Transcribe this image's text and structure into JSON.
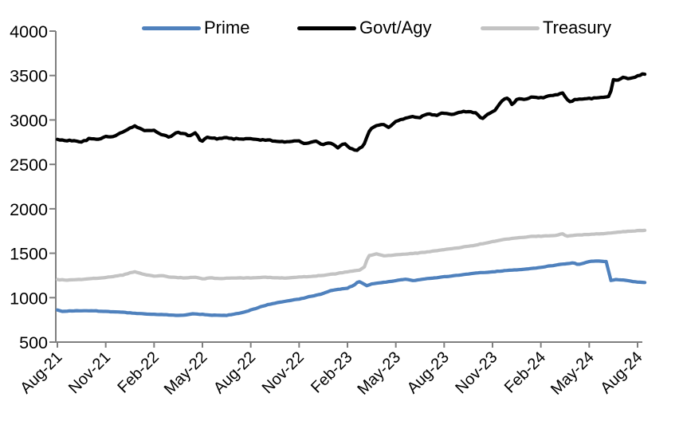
{
  "chart_data": {
    "type": "line",
    "title": "",
    "xlabel": "",
    "ylabel": "",
    "ylim": [
      500,
      4000
    ],
    "y_ticks": [
      500,
      1000,
      1500,
      2000,
      2500,
      3000,
      3500,
      4000
    ],
    "x_tick_labels": [
      "Aug-21",
      "Nov-21",
      "Feb-22",
      "May-22",
      "Aug-22",
      "Nov-22",
      "Feb-23",
      "May-23",
      "Aug-23",
      "Nov-23",
      "Feb-24",
      "May-24",
      "Aug-24"
    ],
    "x_tick_months": [
      0,
      3,
      6,
      9,
      12,
      15,
      18,
      21,
      24,
      27,
      30,
      33,
      36
    ],
    "x_unit": "months since Aug-21",
    "x_range_months": [
      0,
      36.5
    ],
    "grid": false,
    "legend_position": "top",
    "axis_color": "#7F7F7F",
    "series": [
      {
        "name": "Prime",
        "color": "#4F81BD",
        "line_width": 4.2,
        "noise_amplitude": 3.5,
        "anchors": [
          [
            0,
            862
          ],
          [
            0.3,
            845
          ],
          [
            1,
            852
          ],
          [
            2,
            854
          ],
          [
            3,
            846
          ],
          [
            4,
            836
          ],
          [
            5,
            822
          ],
          [
            6,
            812
          ],
          [
            7,
            806
          ],
          [
            7.5,
            800
          ],
          [
            8,
            806
          ],
          [
            8.4,
            818
          ],
          [
            9,
            812
          ],
          [
            9.5,
            804
          ],
          [
            10,
            802
          ],
          [
            10.5,
            800
          ],
          [
            11,
            815
          ],
          [
            11.5,
            832
          ],
          [
            12,
            860
          ],
          [
            13,
            920
          ],
          [
            14,
            955
          ],
          [
            15,
            985
          ],
          [
            16,
            1025
          ],
          [
            16.5,
            1048
          ],
          [
            17,
            1082
          ],
          [
            17.5,
            1095
          ],
          [
            18,
            1108
          ],
          [
            18.4,
            1140
          ],
          [
            18.7,
            1185
          ],
          [
            19.2,
            1135
          ],
          [
            19.6,
            1158
          ],
          [
            20.4,
            1175
          ],
          [
            21,
            1190
          ],
          [
            21.6,
            1210
          ],
          [
            22.1,
            1192
          ],
          [
            22.6,
            1205
          ],
          [
            23,
            1215
          ],
          [
            24,
            1235
          ],
          [
            25,
            1255
          ],
          [
            26,
            1278
          ],
          [
            26.5,
            1283
          ],
          [
            27,
            1290
          ],
          [
            28,
            1308
          ],
          [
            29,
            1320
          ],
          [
            30,
            1340
          ],
          [
            31,
            1370
          ],
          [
            32,
            1392
          ],
          [
            32.35,
            1372
          ],
          [
            33,
            1405
          ],
          [
            33.5,
            1413
          ],
          [
            34,
            1405
          ],
          [
            34.15,
            1408
          ],
          [
            34.25,
            1192
          ],
          [
            34.7,
            1205
          ],
          [
            35.2,
            1198
          ],
          [
            35.6,
            1185
          ],
          [
            36,
            1175
          ],
          [
            36.5,
            1168
          ]
        ]
      },
      {
        "name": "Govt/Agy",
        "color": "#000000",
        "line_width": 4.2,
        "noise_amplitude": 10,
        "anchors": [
          [
            0,
            2780
          ],
          [
            0.5,
            2762
          ],
          [
            1,
            2770
          ],
          [
            1.5,
            2752
          ],
          [
            2,
            2790
          ],
          [
            2.5,
            2780
          ],
          [
            3,
            2815
          ],
          [
            3.5,
            2810
          ],
          [
            4,
            2862
          ],
          [
            4.8,
            2938
          ],
          [
            5.2,
            2898
          ],
          [
            5.6,
            2875
          ],
          [
            6,
            2885
          ],
          [
            6.4,
            2840
          ],
          [
            7,
            2805
          ],
          [
            7.4,
            2862
          ],
          [
            7.8,
            2848
          ],
          [
            8.2,
            2818
          ],
          [
            8.6,
            2858
          ],
          [
            8.9,
            2752
          ],
          [
            9.3,
            2802
          ],
          [
            9.8,
            2790
          ],
          [
            10.5,
            2798
          ],
          [
            11,
            2788
          ],
          [
            12,
            2788
          ],
          [
            12.5,
            2778
          ],
          [
            13,
            2776
          ],
          [
            14,
            2752
          ],
          [
            14.5,
            2762
          ],
          [
            15,
            2758
          ],
          [
            15.4,
            2732
          ],
          [
            16,
            2762
          ],
          [
            16.4,
            2722
          ],
          [
            17,
            2742
          ],
          [
            17.4,
            2688
          ],
          [
            17.8,
            2738
          ],
          [
            18.2,
            2680
          ],
          [
            18.6,
            2662
          ],
          [
            19,
            2712
          ],
          [
            19.4,
            2890
          ],
          [
            19.8,
            2942
          ],
          [
            20.2,
            2955
          ],
          [
            20.6,
            2912
          ],
          [
            21,
            2985
          ],
          [
            21.5,
            3012
          ],
          [
            22,
            3040
          ],
          [
            22.4,
            3022
          ],
          [
            23,
            3070
          ],
          [
            23.5,
            3055
          ],
          [
            24,
            3080
          ],
          [
            24.6,
            3062
          ],
          [
            25,
            3092
          ],
          [
            25.6,
            3095
          ],
          [
            26,
            3075
          ],
          [
            26.3,
            3012
          ],
          [
            26.8,
            3072
          ],
          [
            27.2,
            3118
          ],
          [
            27.7,
            3242
          ],
          [
            28,
            3252
          ],
          [
            28.2,
            3172
          ],
          [
            28.6,
            3242
          ],
          [
            29,
            3232
          ],
          [
            29.4,
            3258
          ],
          [
            30,
            3248
          ],
          [
            30.5,
            3272
          ],
          [
            31,
            3282
          ],
          [
            31.3,
            3312
          ],
          [
            31.8,
            3202
          ],
          [
            32.2,
            3232
          ],
          [
            33,
            3242
          ],
          [
            33.6,
            3252
          ],
          [
            34.1,
            3262
          ],
          [
            34.3,
            3268
          ],
          [
            34.45,
            3452
          ],
          [
            34.8,
            3448
          ],
          [
            35.1,
            3478
          ],
          [
            35.5,
            3462
          ],
          [
            36,
            3492
          ],
          [
            36.5,
            3522
          ]
        ]
      },
      {
        "name": "Treasury",
        "color": "#C3C3C3",
        "line_width": 4.2,
        "noise_amplitude": 4.5,
        "anchors": [
          [
            0,
            1205
          ],
          [
            0.5,
            1198
          ],
          [
            1,
            1200
          ],
          [
            2,
            1212
          ],
          [
            3,
            1228
          ],
          [
            4,
            1252
          ],
          [
            4.8,
            1292
          ],
          [
            5.4,
            1262
          ],
          [
            6,
            1242
          ],
          [
            6.5,
            1248
          ],
          [
            7,
            1232
          ],
          [
            8,
            1222
          ],
          [
            8.5,
            1232
          ],
          [
            9,
            1212
          ],
          [
            9.5,
            1222
          ],
          [
            10,
            1215
          ],
          [
            11,
            1222
          ],
          [
            12,
            1222
          ],
          [
            13,
            1228
          ],
          [
            14,
            1222
          ],
          [
            15,
            1232
          ],
          [
            16,
            1242
          ],
          [
            17,
            1262
          ],
          [
            18,
            1292
          ],
          [
            18.8,
            1312
          ],
          [
            19.05,
            1345
          ],
          [
            19.3,
            1472
          ],
          [
            19.8,
            1492
          ],
          [
            20.3,
            1468
          ],
          [
            21,
            1482
          ],
          [
            22,
            1495
          ],
          [
            23,
            1515
          ],
          [
            24,
            1540
          ],
          [
            25,
            1565
          ],
          [
            26,
            1592
          ],
          [
            27,
            1632
          ],
          [
            28,
            1662
          ],
          [
            29,
            1682
          ],
          [
            30,
            1692
          ],
          [
            31,
            1702
          ],
          [
            31.3,
            1722
          ],
          [
            31.6,
            1692
          ],
          [
            32,
            1702
          ],
          [
            33,
            1712
          ],
          [
            34,
            1722
          ],
          [
            35,
            1742
          ],
          [
            36,
            1752
          ],
          [
            36.5,
            1758
          ]
        ]
      }
    ]
  }
}
